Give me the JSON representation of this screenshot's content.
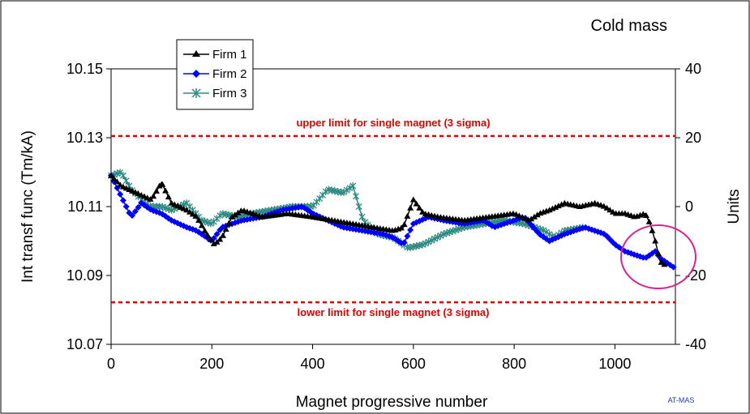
{
  "chart_data": {
    "type": "line",
    "title": "Cold mass",
    "xlabel": "Magnet progressive number",
    "ylabel": "Int transf func (Tm/kA)",
    "y2label": "Units",
    "xlim": [
      0,
      1120
    ],
    "ylim": [
      10.07,
      10.15
    ],
    "y2lim": [
      -40,
      40
    ],
    "x_ticks": [
      "0",
      "200",
      "400",
      "600",
      "800",
      "1000"
    ],
    "y_ticks": [
      "10.07",
      "10.09",
      "10.11",
      "10.13",
      "10.15"
    ],
    "y2_ticks": [
      "-40",
      "-20",
      "0",
      "20",
      "40"
    ],
    "grid": false,
    "legend_position": "top-left",
    "colors": {
      "Firm 1": "#000000",
      "Firm 2": "#0000ff",
      "Firm 3": "#2e8b82",
      "limits": "#e00000",
      "highlight": "#d9238c"
    },
    "limits": [
      {
        "label": "upper limit for single magnet (3 sigma)",
        "value": 10.1305
      },
      {
        "label": "lower limit for single magnet (3 sigma)",
        "value": 10.0822
      }
    ],
    "series": [
      {
        "name": "Firm 1",
        "marker": "triangle",
        "points": [
          [
            0,
            10.119
          ],
          [
            20,
            10.116
          ],
          [
            50,
            10.114
          ],
          [
            80,
            10.112
          ],
          [
            100,
            10.117
          ],
          [
            120,
            10.111
          ],
          [
            150,
            10.109
          ],
          [
            170,
            10.107
          ],
          [
            190,
            10.102
          ],
          [
            205,
            10.099
          ],
          [
            220,
            10.101
          ],
          [
            240,
            10.107
          ],
          [
            260,
            10.109
          ],
          [
            300,
            10.107
          ],
          [
            350,
            10.108
          ],
          [
            400,
            10.107
          ],
          [
            440,
            10.106
          ],
          [
            480,
            10.105
          ],
          [
            520,
            10.104
          ],
          [
            560,
            10.103
          ],
          [
            580,
            10.104
          ],
          [
            600,
            10.112
          ],
          [
            620,
            10.108
          ],
          [
            650,
            10.107
          ],
          [
            700,
            10.106
          ],
          [
            750,
            10.107
          ],
          [
            800,
            10.108
          ],
          [
            830,
            10.106
          ],
          [
            850,
            10.108
          ],
          [
            870,
            10.109
          ],
          [
            900,
            10.111
          ],
          [
            930,
            10.11
          ],
          [
            960,
            10.111
          ],
          [
            980,
            10.11
          ],
          [
            1000,
            10.108
          ],
          [
            1020,
            10.108
          ],
          [
            1040,
            10.107
          ],
          [
            1060,
            10.108
          ],
          [
            1070,
            10.105
          ],
          [
            1080,
            10.1
          ],
          [
            1090,
            10.094
          ],
          [
            1100,
            10.093
          ]
        ]
      },
      {
        "name": "Firm 2",
        "marker": "diamond",
        "points": [
          [
            0,
            10.119
          ],
          [
            20,
            10.113
          ],
          [
            40,
            10.107
          ],
          [
            60,
            10.111
          ],
          [
            80,
            10.109
          ],
          [
            100,
            10.108
          ],
          [
            120,
            10.106
          ],
          [
            150,
            10.104
          ],
          [
            170,
            10.103
          ],
          [
            200,
            10.1
          ],
          [
            220,
            10.104
          ],
          [
            240,
            10.105
          ],
          [
            260,
            10.106
          ],
          [
            300,
            10.107
          ],
          [
            340,
            10.109
          ],
          [
            380,
            10.11
          ],
          [
            400,
            10.108
          ],
          [
            430,
            10.106
          ],
          [
            460,
            10.104
          ],
          [
            500,
            10.103
          ],
          [
            540,
            10.102
          ],
          [
            560,
            10.101
          ],
          [
            580,
            10.099
          ],
          [
            600,
            10.105
          ],
          [
            630,
            10.107
          ],
          [
            660,
            10.106
          ],
          [
            700,
            10.105
          ],
          [
            740,
            10.106
          ],
          [
            760,
            10.104
          ],
          [
            800,
            10.106
          ],
          [
            820,
            10.107
          ],
          [
            850,
            10.102
          ],
          [
            870,
            10.1
          ],
          [
            900,
            10.102
          ],
          [
            940,
            10.104
          ],
          [
            960,
            10.103
          ],
          [
            980,
            10.102
          ],
          [
            1000,
            10.099
          ],
          [
            1020,
            10.097
          ],
          [
            1040,
            10.096
          ],
          [
            1060,
            10.095
          ],
          [
            1080,
            10.097
          ],
          [
            1090,
            10.095
          ],
          [
            1100,
            10.094
          ],
          [
            1120,
            10.092
          ]
        ]
      },
      {
        "name": "Firm 3",
        "marker": "asterisk",
        "points": [
          [
            0,
            10.119
          ],
          [
            20,
            10.12
          ],
          [
            40,
            10.115
          ],
          [
            60,
            10.112
          ],
          [
            80,
            10.11
          ],
          [
            100,
            10.11
          ],
          [
            120,
            10.109
          ],
          [
            150,
            10.111
          ],
          [
            180,
            10.106
          ],
          [
            200,
            10.105
          ],
          [
            220,
            10.108
          ],
          [
            250,
            10.107
          ],
          [
            280,
            10.108
          ],
          [
            320,
            10.109
          ],
          [
            360,
            10.11
          ],
          [
            400,
            10.11
          ],
          [
            430,
            10.115
          ],
          [
            460,
            10.114
          ],
          [
            480,
            10.116
          ],
          [
            500,
            10.106
          ],
          [
            530,
            10.102
          ],
          [
            560,
            10.101
          ],
          [
            590,
            10.098
          ],
          [
            620,
            10.099
          ],
          [
            660,
            10.102
          ],
          [
            700,
            10.104
          ],
          [
            740,
            10.105
          ],
          [
            780,
            10.106
          ],
          [
            820,
            10.105
          ],
          [
            860,
            10.103
          ],
          [
            880,
            10.101
          ],
          [
            900,
            10.103
          ],
          [
            940,
            10.104
          ]
        ]
      }
    ]
  },
  "footer": {
    "tag": "AT-MAS"
  }
}
